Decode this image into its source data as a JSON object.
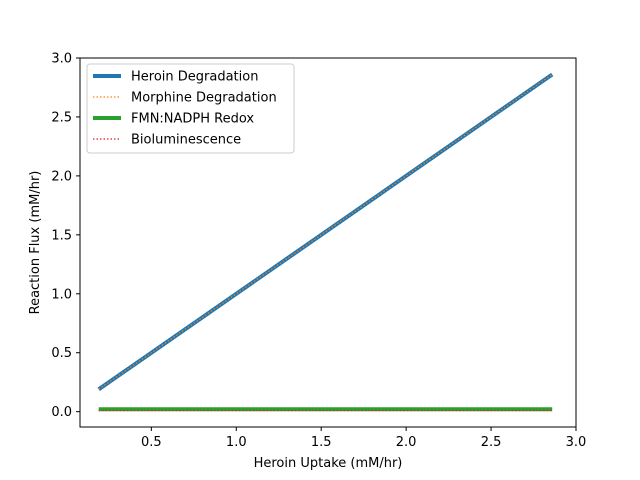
{
  "chart_data": {
    "type": "line",
    "title": "",
    "xlabel": "Heroin Uptake (mM/hr)",
    "ylabel": "Reaction Flux (mM/hr)",
    "xlim": [
      0.08,
      3.0
    ],
    "ylim": [
      -0.13,
      3.0
    ],
    "xticks": [
      0.5,
      1.0,
      1.5,
      2.0,
      2.5,
      3.0
    ],
    "xtick_labels": [
      "0.5",
      "1.0",
      "1.5",
      "2.0",
      "2.5",
      "3.0"
    ],
    "yticks": [
      0.0,
      0.5,
      1.0,
      1.5,
      2.0,
      2.5,
      3.0
    ],
    "ytick_labels": [
      "0.0",
      "0.5",
      "1.0",
      "1.5",
      "2.0",
      "2.5",
      "3.0"
    ],
    "grid": false,
    "legend_position": "top-left",
    "series": [
      {
        "name": "Heroin Degradation",
        "color": "#1f77b4",
        "style": "solid",
        "x": [
          0.19,
          2.86
        ],
        "y": [
          0.19,
          2.86
        ]
      },
      {
        "name": "Morphine Degradation",
        "color": "#ff7f0e",
        "style": "dotted",
        "x": [
          0.19,
          2.86
        ],
        "y": [
          0.19,
          2.86
        ]
      },
      {
        "name": "FMN:NADPH Redox",
        "color": "#2ca02c",
        "style": "solid",
        "x": [
          0.19,
          2.86
        ],
        "y": [
          0.02,
          0.02
        ]
      },
      {
        "name": "Bioluminescence",
        "color": "#d62728",
        "style": "dotted",
        "x": [
          0.19,
          2.86
        ],
        "y": [
          0.01,
          0.01
        ]
      }
    ]
  }
}
